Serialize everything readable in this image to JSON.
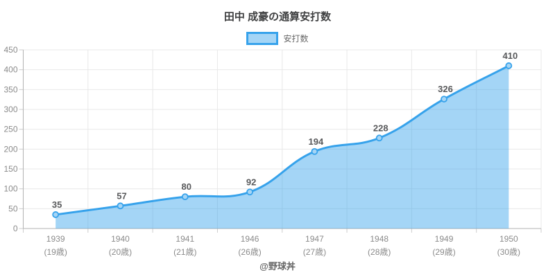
{
  "page": {
    "title": "田中 成豪の通算安打数",
    "footer": "@野球丼"
  },
  "legend": {
    "label": "安打数"
  },
  "chart_data": {
    "type": "area",
    "title": "田中 成豪の通算安打数",
    "categories": [
      "1939",
      "1940",
      "1941",
      "1946",
      "1947",
      "1948",
      "1949",
      "1950"
    ],
    "category_sublabels": [
      "(19歳)",
      "(20歳)",
      "(21歳)",
      "(26歳)",
      "(27歳)",
      "(28歳)",
      "(29歳)",
      "(30歳)"
    ],
    "series": [
      {
        "name": "安打数",
        "values": [
          35,
          57,
          80,
          92,
          194,
          228,
          326,
          410
        ]
      }
    ],
    "ylim": [
      0,
      450
    ],
    "ytick_step": 50,
    "grid": true,
    "legend_position": "top",
    "line_smoothing": 0.4,
    "colors": {
      "line": "#36a2eb",
      "area_fill": "rgba(54,162,235,0.45)",
      "point_fill": "#a6d5f5",
      "point_border": "#36a2eb",
      "grid": "#e8e8e8",
      "axis_border": "#b3b3b3",
      "tick_mark": "#cccccc",
      "tick_label": "#8a8a8a",
      "data_label": "#58595b",
      "title": "#3e3f40",
      "legend_label": "#666666",
      "footer": "#666666"
    }
  }
}
